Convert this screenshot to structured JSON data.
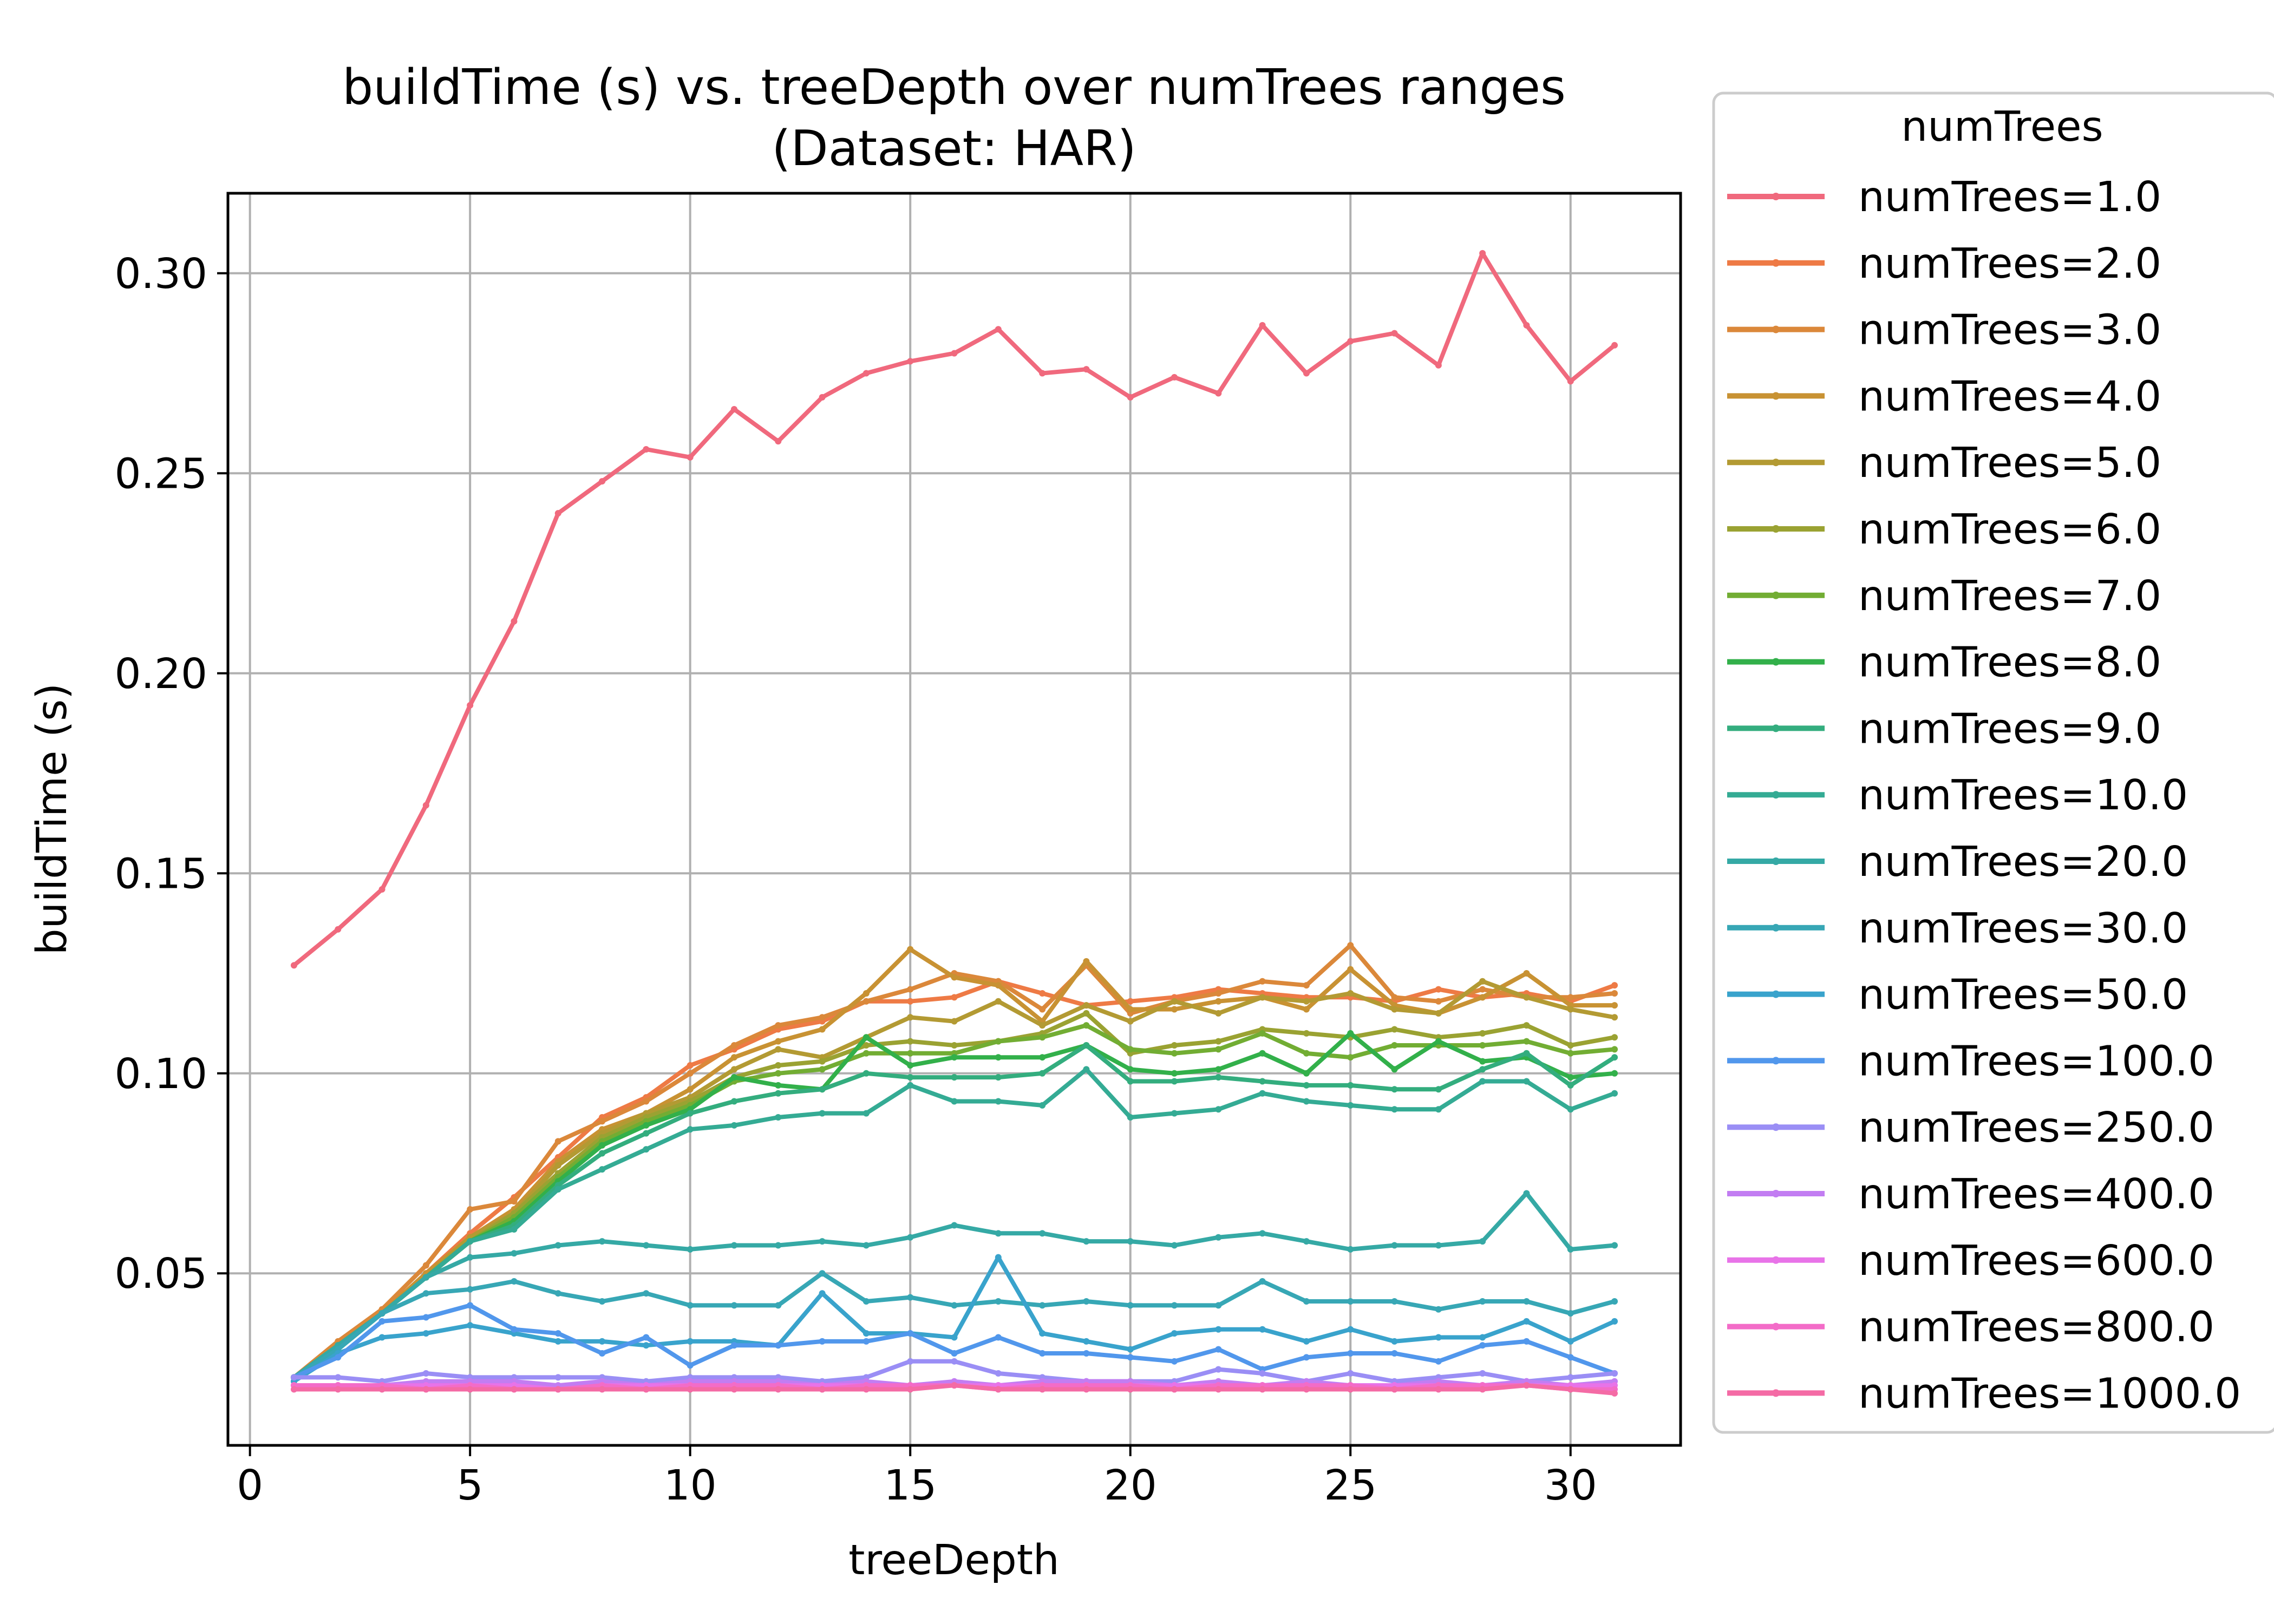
{
  "chart_data": {
    "type": "line",
    "title": "buildTime (s) vs. treeDepth over numTrees ranges",
    "subtitle": "(Dataset: HAR)",
    "xlabel": "treeDepth",
    "ylabel": "buildTime (s)",
    "xlim": [
      -0.5,
      32.5
    ],
    "ylim": [
      0.007,
      0.32
    ],
    "xticks": [
      0,
      5,
      10,
      15,
      20,
      25,
      30
    ],
    "yticks": [
      0.05,
      0.1,
      0.15,
      0.2,
      0.25,
      0.3
    ],
    "xtick_labels": [
      "0",
      "5",
      "10",
      "15",
      "20",
      "25",
      "30"
    ],
    "ytick_labels": [
      "0.05",
      "0.10",
      "0.15",
      "0.20",
      "0.25",
      "0.30"
    ],
    "grid": true,
    "legend": {
      "title": "numTrees",
      "placement": "outside-right"
    },
    "x": [
      1,
      2,
      3,
      4,
      5,
      6,
      7,
      8,
      9,
      10,
      11,
      12,
      13,
      14,
      15,
      16,
      17,
      18,
      19,
      20,
      21,
      22,
      23,
      24,
      25,
      26,
      27,
      28,
      29,
      30,
      31
    ],
    "series": [
      {
        "name": "numTrees=1.0",
        "color": "#f0697d",
        "values": [
          0.127,
          0.136,
          0.146,
          0.167,
          0.192,
          0.213,
          0.24,
          0.248,
          0.256,
          0.254,
          0.266,
          0.258,
          0.269,
          0.275,
          0.278,
          0.28,
          0.286,
          0.275,
          0.276,
          0.269,
          0.274,
          0.27,
          0.287,
          0.275,
          0.283,
          0.285,
          0.277,
          0.305,
          0.287,
          0.273,
          0.282
        ]
      },
      {
        "name": "numTrees=2.0",
        "color": "#ee7a45",
        "values": [
          0.024,
          0.032,
          0.04,
          0.05,
          0.06,
          0.069,
          0.079,
          0.089,
          0.094,
          0.102,
          0.106,
          0.111,
          0.113,
          0.118,
          0.118,
          0.119,
          0.123,
          0.12,
          0.117,
          0.118,
          0.119,
          0.121,
          0.12,
          0.119,
          0.119,
          0.118,
          0.121,
          0.119,
          0.12,
          0.118,
          0.122
        ]
      },
      {
        "name": "numTrees=3.0",
        "color": "#db883a",
        "values": [
          0.024,
          0.033,
          0.041,
          0.052,
          0.066,
          0.068,
          0.083,
          0.088,
          0.093,
          0.1,
          0.107,
          0.112,
          0.114,
          0.118,
          0.121,
          0.125,
          0.123,
          0.116,
          0.127,
          0.115,
          0.118,
          0.12,
          0.123,
          0.122,
          0.132,
          0.119,
          0.118,
          0.121,
          0.119,
          0.119,
          0.12
        ]
      },
      {
        "name": "numTrees=4.0",
        "color": "#c89233",
        "values": [
          0.024,
          0.032,
          0.04,
          0.05,
          0.059,
          0.066,
          0.078,
          0.086,
          0.09,
          0.096,
          0.104,
          0.108,
          0.111,
          0.12,
          0.131,
          0.124,
          0.122,
          0.113,
          0.128,
          0.116,
          0.116,
          0.118,
          0.119,
          0.116,
          0.126,
          0.117,
          0.115,
          0.119,
          0.125,
          0.117,
          0.117
        ]
      },
      {
        "name": "numTrees=5.0",
        "color": "#b39a33",
        "values": [
          0.024,
          0.032,
          0.04,
          0.049,
          0.059,
          0.065,
          0.077,
          0.085,
          0.09,
          0.094,
          0.101,
          0.106,
          0.104,
          0.109,
          0.114,
          0.113,
          0.118,
          0.112,
          0.117,
          0.113,
          0.118,
          0.115,
          0.119,
          0.118,
          0.12,
          0.116,
          0.115,
          0.123,
          0.119,
          0.116,
          0.114
        ]
      },
      {
        "name": "numTrees=6.0",
        "color": "#9aa232",
        "values": [
          0.024,
          0.032,
          0.04,
          0.049,
          0.058,
          0.065,
          0.075,
          0.084,
          0.089,
          0.093,
          0.099,
          0.102,
          0.103,
          0.107,
          0.108,
          0.107,
          0.108,
          0.11,
          0.115,
          0.105,
          0.107,
          0.108,
          0.111,
          0.11,
          0.109,
          0.111,
          0.109,
          0.11,
          0.112,
          0.107,
          0.109
        ]
      },
      {
        "name": "numTrees=7.0",
        "color": "#72ad33",
        "values": [
          0.024,
          0.032,
          0.04,
          0.049,
          0.058,
          0.064,
          0.074,
          0.083,
          0.088,
          0.092,
          0.098,
          0.1,
          0.101,
          0.105,
          0.105,
          0.105,
          0.108,
          0.109,
          0.112,
          0.106,
          0.105,
          0.106,
          0.11,
          0.105,
          0.104,
          0.107,
          0.107,
          0.107,
          0.108,
          0.105,
          0.106
        ]
      },
      {
        "name": "numTrees=8.0",
        "color": "#32b04a",
        "values": [
          0.024,
          0.032,
          0.04,
          0.049,
          0.058,
          0.063,
          0.073,
          0.082,
          0.087,
          0.091,
          0.099,
          0.097,
          0.096,
          0.109,
          0.102,
          0.104,
          0.104,
          0.104,
          0.107,
          0.101,
          0.1,
          0.101,
          0.105,
          0.1,
          0.11,
          0.101,
          0.108,
          0.103,
          0.104,
          0.099,
          0.1
        ]
      },
      {
        "name": "numTrees=9.0",
        "color": "#33ad7e",
        "values": [
          0.024,
          0.032,
          0.04,
          0.049,
          0.058,
          0.062,
          0.072,
          0.08,
          0.085,
          0.09,
          0.093,
          0.095,
          0.096,
          0.1,
          0.099,
          0.099,
          0.099,
          0.1,
          0.107,
          0.098,
          0.098,
          0.099,
          0.098,
          0.097,
          0.097,
          0.096,
          0.096,
          0.101,
          0.105,
          0.097,
          0.104
        ]
      },
      {
        "name": "numTrees=10.0",
        "color": "#34ab94",
        "values": [
          0.024,
          0.031,
          0.04,
          0.049,
          0.058,
          0.061,
          0.071,
          0.076,
          0.081,
          0.086,
          0.087,
          0.089,
          0.09,
          0.09,
          0.097,
          0.093,
          0.093,
          0.092,
          0.101,
          0.089,
          0.09,
          0.091,
          0.095,
          0.093,
          0.092,
          0.091,
          0.091,
          0.098,
          0.098,
          0.091,
          0.095
        ]
      },
      {
        "name": "numTrees=20.0",
        "color": "#35a9a5",
        "values": [
          0.024,
          0.032,
          0.04,
          0.049,
          0.054,
          0.055,
          0.057,
          0.058,
          0.057,
          0.056,
          0.057,
          0.057,
          0.058,
          0.057,
          0.059,
          0.062,
          0.06,
          0.06,
          0.058,
          0.058,
          0.057,
          0.059,
          0.06,
          0.058,
          0.056,
          0.057,
          0.057,
          0.058,
          0.07,
          0.056,
          0.057
        ]
      },
      {
        "name": "numTrees=30.0",
        "color": "#37a7b5",
        "values": [
          0.024,
          0.031,
          0.04,
          0.045,
          0.046,
          0.048,
          0.045,
          0.043,
          0.045,
          0.042,
          0.042,
          0.042,
          0.05,
          0.043,
          0.044,
          0.042,
          0.043,
          0.042,
          0.043,
          0.042,
          0.042,
          0.042,
          0.048,
          0.043,
          0.043,
          0.043,
          0.041,
          0.043,
          0.043,
          0.04,
          0.043
        ]
      },
      {
        "name": "numTrees=50.0",
        "color": "#39a3cc",
        "values": [
          0.023,
          0.03,
          0.034,
          0.035,
          0.037,
          0.035,
          0.033,
          0.033,
          0.032,
          0.033,
          0.033,
          0.032,
          0.045,
          0.035,
          0.035,
          0.034,
          0.054,
          0.035,
          0.033,
          0.031,
          0.035,
          0.036,
          0.036,
          0.033,
          0.036,
          0.033,
          0.034,
          0.034,
          0.038,
          0.033,
          0.038
        ]
      },
      {
        "name": "numTrees=100.0",
        "color": "#5197ec",
        "values": [
          0.024,
          0.029,
          0.038,
          0.039,
          0.042,
          0.036,
          0.035,
          0.03,
          0.034,
          0.027,
          0.032,
          0.032,
          0.033,
          0.033,
          0.035,
          0.03,
          0.034,
          0.03,
          0.03,
          0.029,
          0.028,
          0.031,
          0.026,
          0.029,
          0.03,
          0.03,
          0.028,
          0.032,
          0.033,
          0.029,
          0.025
        ]
      },
      {
        "name": "numTrees=250.0",
        "color": "#9a8ef5",
        "values": [
          0.024,
          0.024,
          0.023,
          0.025,
          0.024,
          0.024,
          0.024,
          0.024,
          0.023,
          0.024,
          0.024,
          0.024,
          0.023,
          0.024,
          0.028,
          0.028,
          0.025,
          0.024,
          0.023,
          0.023,
          0.023,
          0.026,
          0.025,
          0.023,
          0.025,
          0.023,
          0.024,
          0.025,
          0.023,
          0.024,
          0.025
        ]
      },
      {
        "name": "numTrees=400.0",
        "color": "#c27df2",
        "values": [
          0.022,
          0.022,
          0.022,
          0.023,
          0.023,
          0.023,
          0.022,
          0.023,
          0.022,
          0.023,
          0.023,
          0.023,
          0.022,
          0.023,
          0.022,
          0.023,
          0.022,
          0.023,
          0.023,
          0.023,
          0.022,
          0.023,
          0.022,
          0.023,
          0.022,
          0.022,
          0.023,
          0.022,
          0.023,
          0.022,
          0.023
        ]
      },
      {
        "name": "numTrees=600.0",
        "color": "#e873e8",
        "values": [
          0.022,
          0.022,
          0.022,
          0.022,
          0.022,
          0.022,
          0.021,
          0.022,
          0.022,
          0.022,
          0.022,
          0.022,
          0.022,
          0.022,
          0.022,
          0.022,
          0.022,
          0.022,
          0.022,
          0.022,
          0.022,
          0.022,
          0.022,
          0.022,
          0.022,
          0.022,
          0.022,
          0.022,
          0.022,
          0.022,
          0.022
        ]
      },
      {
        "name": "numTrees=800.0",
        "color": "#f36cc8",
        "values": [
          0.022,
          0.022,
          0.022,
          0.021,
          0.022,
          0.021,
          0.021,
          0.022,
          0.021,
          0.022,
          0.022,
          0.022,
          0.021,
          0.022,
          0.022,
          0.022,
          0.021,
          0.022,
          0.022,
          0.022,
          0.021,
          0.022,
          0.022,
          0.022,
          0.022,
          0.021,
          0.022,
          0.022,
          0.022,
          0.021,
          0.021
        ]
      },
      {
        "name": "numTrees=1000.0",
        "color": "#f46ba5",
        "values": [
          0.021,
          0.021,
          0.021,
          0.021,
          0.021,
          0.021,
          0.021,
          0.021,
          0.021,
          0.021,
          0.021,
          0.021,
          0.021,
          0.021,
          0.021,
          0.022,
          0.021,
          0.021,
          0.021,
          0.021,
          0.021,
          0.021,
          0.021,
          0.021,
          0.021,
          0.021,
          0.021,
          0.021,
          0.022,
          0.021,
          0.02
        ]
      }
    ]
  }
}
